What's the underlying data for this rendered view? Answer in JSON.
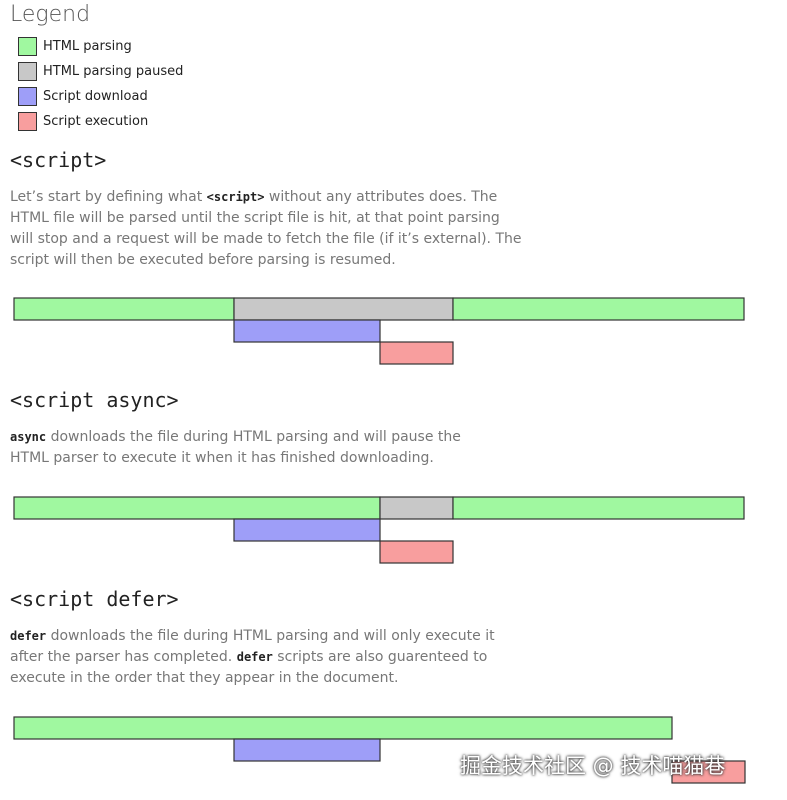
{
  "legend": {
    "title": "Legend",
    "items": [
      "HTML parsing",
      "HTML parsing paused",
      "Script download",
      "Script execution"
    ]
  },
  "sections": [
    {
      "heading": "<script>",
      "parts": [
        "Let’s start by defining what ",
        "<script>",
        " without any attributes does. The HTML file will be parsed until the script file is hit, at that point parsing will stop and a request will be made to fetch the file (if it’s external). The script will then be executed before parsing is resumed."
      ]
    },
    {
      "heading": "<script async>",
      "parts": [
        "async",
        " downloads the file during HTML parsing and will pause the HTML parser to execute it when it has finished downloading."
      ]
    },
    {
      "heading": "<script defer>",
      "parts": [
        "defer",
        " downloads the file during HTML parsing and will only execute it after the parser has completed. ",
        "defer",
        " scripts are also guarenteed to execute in the order that they appear in the document."
      ]
    }
  ],
  "watermark": "掘金技术社区 @ 技术喵猫巷"
}
